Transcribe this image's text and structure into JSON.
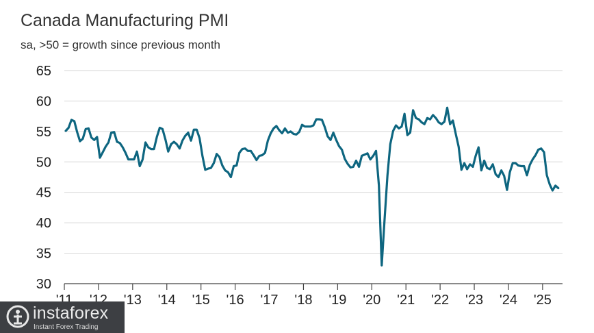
{
  "chart_data": {
    "type": "line",
    "title": "Canada Manufacturing PMI",
    "subtitle": "sa, >50 = growth since previous month",
    "xlabel": "",
    "ylabel": "",
    "ylim": [
      30,
      65
    ],
    "yticks": [
      "30",
      "35",
      "40",
      "45",
      "50",
      "55",
      "60",
      "65"
    ],
    "xticks": [
      "'11",
      "'12",
      "'13",
      "'14",
      "'15",
      "'16",
      "'17",
      "'18",
      "'19",
      "'20",
      "'21",
      "'22",
      "'23",
      "'24",
      "'25"
    ],
    "grid": "horizontal",
    "line_color": "#0e6680",
    "start": "2011-01",
    "end": "2025-07",
    "values": [
      55.1,
      55.6,
      56.9,
      56.7,
      54.9,
      53.4,
      53.8,
      55.4,
      55.5,
      54.0,
      53.6,
      54.1,
      50.7,
      51.6,
      52.5,
      53.2,
      54.8,
      54.9,
      53.3,
      53.1,
      52.4,
      51.5,
      50.4,
      50.4,
      50.4,
      51.7,
      49.3,
      50.4,
      53.2,
      52.4,
      52.1,
      52.1,
      54.1,
      55.6,
      55.4,
      53.7,
      51.7,
      52.9,
      53.3,
      52.9,
      52.2,
      53.5,
      54.3,
      54.8,
      53.5,
      55.3,
      55.3,
      53.9,
      51.0,
      48.7,
      48.9,
      49.0,
      49.8,
      51.3,
      50.8,
      49.4,
      48.6,
      48.3,
      47.5,
      49.3,
      49.4,
      51.5,
      52.1,
      52.2,
      51.8,
      51.8,
      51.1,
      50.3,
      51.0,
      51.1,
      51.5,
      53.5,
      54.7,
      55.5,
      55.9,
      55.2,
      54.7,
      55.5,
      54.8,
      55.0,
      54.6,
      54.5,
      54.9,
      56.1,
      55.8,
      55.8,
      55.8,
      56.0,
      57.0,
      57.0,
      56.9,
      55.7,
      54.2,
      53.6,
      54.8,
      53.6,
      52.6,
      52.0,
      50.5,
      49.7,
      49.1,
      49.2,
      50.2,
      49.2,
      51.0,
      51.2,
      51.4,
      50.4,
      51.0,
      51.8,
      46.1,
      33.0,
      40.6,
      47.8,
      52.9,
      55.1,
      56.0,
      55.5,
      55.8,
      57.9,
      54.4,
      54.8,
      58.5,
      57.2,
      57.0,
      56.5,
      56.2,
      57.2,
      57.0,
      57.7,
      57.2,
      56.5,
      56.2,
      56.6,
      58.9,
      56.2,
      56.8,
      54.6,
      52.5,
      48.7,
      49.8,
      48.8,
      49.6,
      49.2,
      51.0,
      52.4,
      48.6,
      50.2,
      49.0,
      48.8,
      49.6,
      48.0,
      47.5,
      48.6,
      47.7,
      45.4,
      48.3,
      49.8,
      49.8,
      49.4,
      49.3,
      49.3,
      47.8,
      49.5,
      50.4,
      51.1,
      52.0,
      52.2,
      51.6,
      47.8,
      46.3,
      45.3,
      46.1,
      45.7
    ]
  },
  "watermark": {
    "name": "instaforex",
    "tagline": "Instant Forex Trading"
  }
}
